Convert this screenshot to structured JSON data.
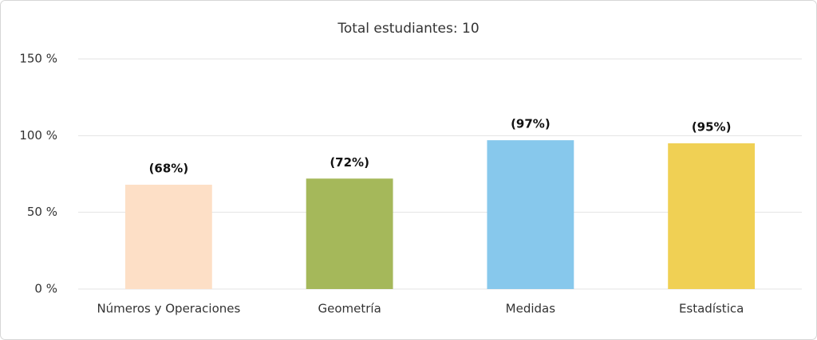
{
  "chart_data": {
    "type": "bar",
    "title": "Total estudiantes: 10",
    "categories": [
      "Números y Operaciones",
      "Geometría",
      "Medidas",
      "Estadística"
    ],
    "values": [
      68,
      72,
      97,
      95
    ],
    "value_labels": [
      "(68%)",
      "(72%)",
      "(97%)",
      "(95%)"
    ],
    "colors": [
      "#fddfc6",
      "#a5b85a",
      "#87c8ec",
      "#f0d054"
    ],
    "ylim": [
      0,
      150
    ],
    "yticks": [
      {
        "value": 0,
        "label": "0 %"
      },
      {
        "value": 50,
        "label": "50 %"
      },
      {
        "value": 100,
        "label": "100 %"
      },
      {
        "value": 150,
        "label": "150 %"
      }
    ],
    "grid": true
  }
}
